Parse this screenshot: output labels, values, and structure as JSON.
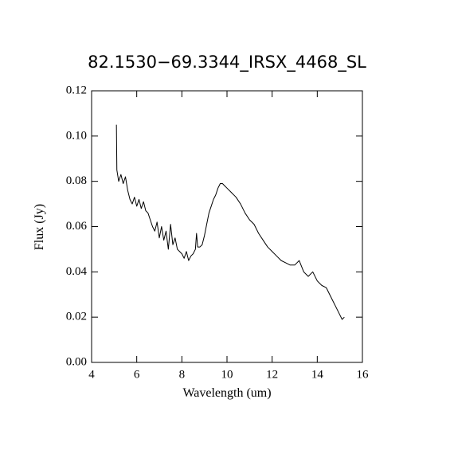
{
  "chart_data": {
    "type": "line",
    "title": "82.1530−69.3344_IRSX_4468_SL",
    "x_label": "Wavelength (um)",
    "y_label": "Flux (Jy)",
    "xlim": [
      4,
      16
    ],
    "ylim": [
      0,
      0.12
    ],
    "xticks": [
      4,
      6,
      8,
      10,
      12,
      14,
      16
    ],
    "yticks": [
      {
        "value": 0,
        "label": "0.00"
      },
      {
        "value": 0.02,
        "label": "0.02"
      },
      {
        "value": 0.04,
        "label": "0.04"
      },
      {
        "value": 0.06,
        "label": "0.06"
      },
      {
        "value": 0.08,
        "label": "0.08"
      },
      {
        "value": 0.1,
        "label": "0.10"
      },
      {
        "value": 0.12,
        "label": "0.12"
      }
    ],
    "color": "#000000",
    "x": [
      5.1,
      5.12,
      5.2,
      5.3,
      5.4,
      5.5,
      5.6,
      5.7,
      5.8,
      5.9,
      6.0,
      6.1,
      6.2,
      6.3,
      6.4,
      6.5,
      6.6,
      6.7,
      6.8,
      6.9,
      7.0,
      7.1,
      7.2,
      7.3,
      7.4,
      7.5,
      7.6,
      7.7,
      7.8,
      7.9,
      8.0,
      8.1,
      8.2,
      8.3,
      8.4,
      8.5,
      8.6,
      8.65,
      8.7,
      8.8,
      8.9,
      9.0,
      9.1,
      9.2,
      9.3,
      9.4,
      9.5,
      9.6,
      9.7,
      9.8,
      9.9,
      10.0,
      10.2,
      10.4,
      10.6,
      10.8,
      11.0,
      11.2,
      11.4,
      11.6,
      11.8,
      12.0,
      12.2,
      12.4,
      12.6,
      12.8,
      13.0,
      13.2,
      13.4,
      13.6,
      13.8,
      14.0,
      14.2,
      14.4,
      14.6,
      14.8,
      15.0,
      15.1,
      15.2
    ],
    "values": [
      0.105,
      0.085,
      0.08,
      0.083,
      0.079,
      0.082,
      0.076,
      0.072,
      0.07,
      0.073,
      0.069,
      0.072,
      0.068,
      0.071,
      0.067,
      0.066,
      0.063,
      0.06,
      0.058,
      0.062,
      0.055,
      0.06,
      0.054,
      0.058,
      0.05,
      0.061,
      0.052,
      0.055,
      0.05,
      0.049,
      0.048,
      0.046,
      0.049,
      0.045,
      0.047,
      0.048,
      0.05,
      0.057,
      0.051,
      0.051,
      0.052,
      0.056,
      0.061,
      0.066,
      0.069,
      0.072,
      0.074,
      0.077,
      0.079,
      0.079,
      0.078,
      0.077,
      0.075,
      0.073,
      0.07,
      0.066,
      0.063,
      0.061,
      0.057,
      0.054,
      0.051,
      0.049,
      0.047,
      0.045,
      0.044,
      0.043,
      0.043,
      0.045,
      0.04,
      0.038,
      0.04,
      0.036,
      0.034,
      0.033,
      0.029,
      0.025,
      0.021,
      0.019,
      0.02
    ]
  }
}
